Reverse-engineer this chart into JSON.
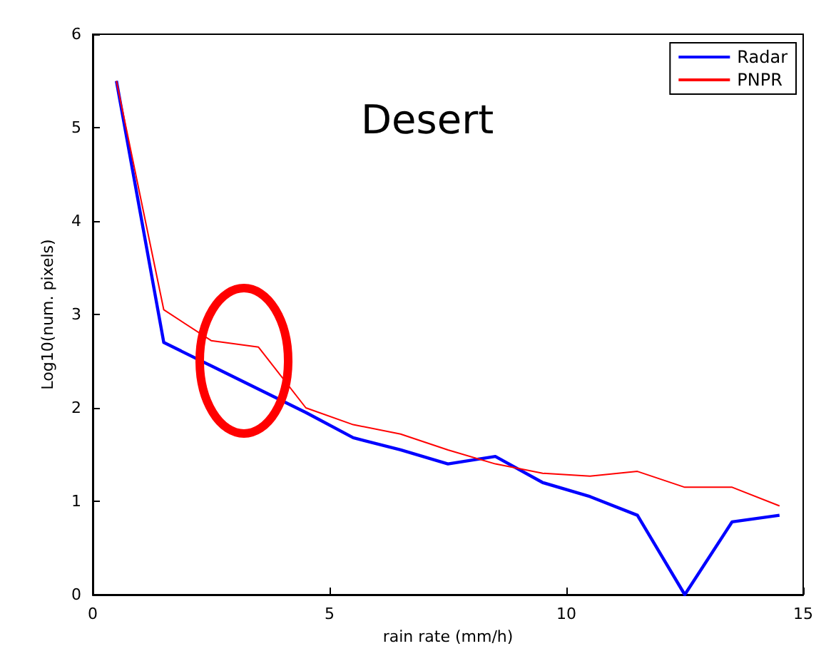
{
  "chart_data": {
    "type": "line",
    "xlabel": "rain rate (mm/h)",
    "ylabel": "Log10(num. pixels)",
    "annotations": [
      "Desert"
    ],
    "x": [
      0.5,
      1.5,
      2.5,
      3.5,
      4.5,
      5.5,
      6.5,
      7.5,
      8.5,
      9.5,
      10.5,
      11.5,
      12.5,
      13.5,
      14.5
    ],
    "series": [
      {
        "name": "Radar",
        "color": "#0000ff",
        "values": [
          5.5,
          2.7,
          2.45,
          2.2,
          1.95,
          1.68,
          1.55,
          1.4,
          1.48,
          1.2,
          1.05,
          0.85,
          0,
          0.78,
          0.85
        ]
      },
      {
        "name": "PNPR",
        "color": "#ff0000",
        "values": [
          5.5,
          3.05,
          2.72,
          2.65,
          2.0,
          1.82,
          1.72,
          1.55,
          1.4,
          1.3,
          1.27,
          1.32,
          1.15,
          1.15,
          0.95
        ]
      }
    ],
    "xlim": [
      0,
      15
    ],
    "xticks": [
      0,
      5,
      10,
      15
    ],
    "ylim": [
      0,
      6
    ],
    "yticks": [
      0,
      1,
      2,
      3,
      4,
      5,
      6
    ],
    "grid": false,
    "legend": "top right",
    "marker": "none",
    "line_style": "solid"
  }
}
